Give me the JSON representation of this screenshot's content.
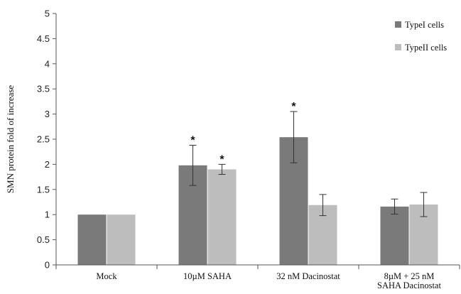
{
  "chart_data": {
    "type": "bar",
    "ylabel": "SMN protein fold of increase",
    "ylim": [
      0,
      5
    ],
    "yticks": [
      "0",
      "0.5",
      "1",
      "1.5",
      "2",
      "2.5",
      "3",
      "3.5",
      "4",
      "4.5",
      "5"
    ],
    "categories": [
      [
        "Mock"
      ],
      [
        "10µM SAHA"
      ],
      [
        "32 nM Dacinostat"
      ],
      [
        "8µM  + 25 nM",
        "SAHA Dacinostat"
      ]
    ],
    "series": [
      {
        "name": "TypeI cells",
        "color": "#7a7a7a",
        "values": [
          1.0,
          1.98,
          2.54,
          1.16
        ],
        "errors": [
          0.0,
          0.4,
          0.51,
          0.15
        ],
        "significant": [
          false,
          true,
          true,
          false
        ]
      },
      {
        "name": "TypeII cells",
        "color": "#bdbdbd",
        "values": [
          1.0,
          1.9,
          1.19,
          1.2
        ],
        "errors": [
          0.0,
          0.1,
          0.21,
          0.24
        ],
        "significant": [
          false,
          true,
          false,
          false
        ]
      }
    ],
    "significance_marker": "*",
    "legend_position": "top-right",
    "grid": false
  }
}
